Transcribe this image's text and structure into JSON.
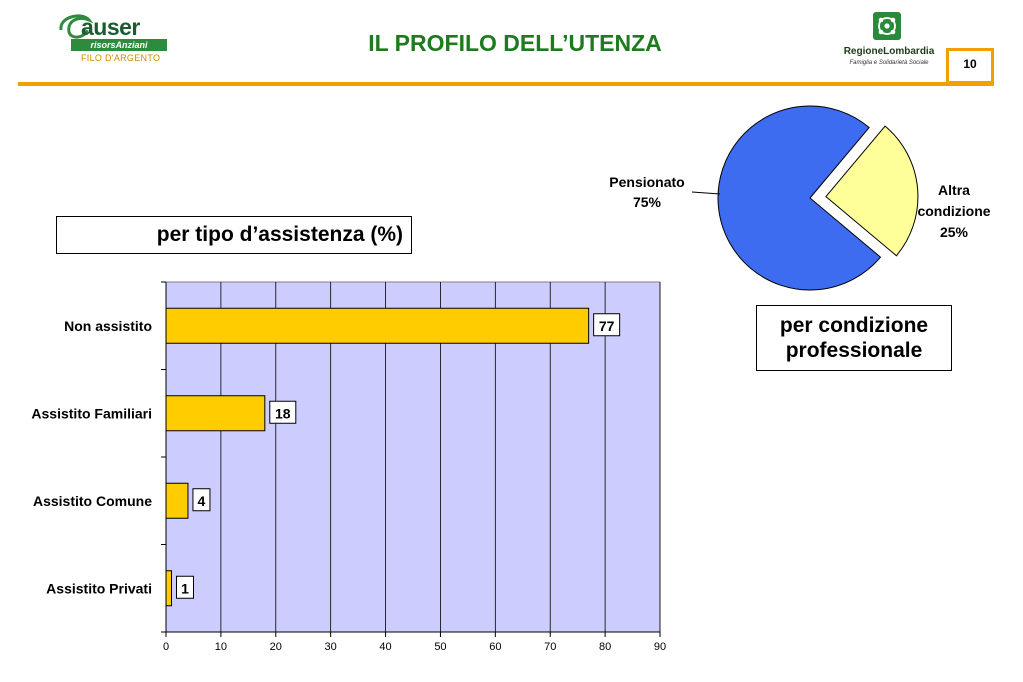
{
  "header": {
    "title": "IL PROFILO DELL’UTENZA",
    "page_number": "10",
    "logo_left": {
      "word": "auser",
      "band": "risorsAnziani",
      "sub": "FILO D'ARGENTO"
    },
    "logo_right": {
      "name": "RegioneLombardia",
      "sub": "Famiglia e Solidarietà Sociale"
    }
  },
  "labels": {
    "bar_chart_caption": "per tipo d’assistenza (%)",
    "pie_chart_caption_line1": "per condizione",
    "pie_chart_caption_line2": "professionale"
  },
  "colors": {
    "accent_orange": "#f0a000",
    "title_green": "#1e7a1e",
    "bar_fill": "#ffcc00",
    "plot_bg": "#ccccff",
    "pie_blue": "#3d6cf0",
    "pie_yellow": "#ffff99"
  },
  "chart_data": [
    {
      "type": "bar",
      "orientation": "horizontal",
      "categories": [
        "Non assistito",
        "Assistito Familiari",
        "Assistito Comune",
        "Assistito Privati"
      ],
      "values": [
        77,
        18,
        4,
        1
      ],
      "data_labels": [
        "77",
        "18",
        "4",
        "1"
      ],
      "xlim": [
        0,
        90
      ],
      "xticks": [
        0,
        10,
        20,
        30,
        40,
        50,
        60,
        70,
        80,
        90
      ],
      "grid": "vertical",
      "title": "",
      "xlabel": "",
      "ylabel": ""
    },
    {
      "type": "pie",
      "slices": [
        {
          "label": "Pensionato",
          "value": 75,
          "value_label": "75%",
          "exploded": false
        },
        {
          "label_lines": [
            "Altra",
            "condizione"
          ],
          "value": 25,
          "value_label": "25%",
          "exploded": true
        }
      ],
      "title": ""
    }
  ]
}
